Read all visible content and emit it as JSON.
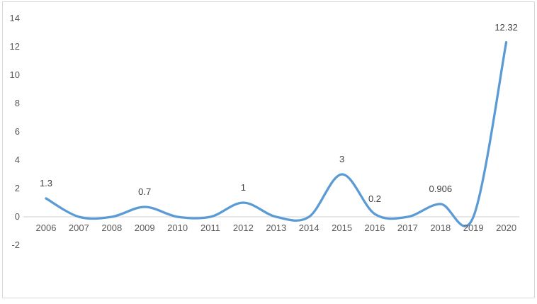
{
  "chart_data": {
    "type": "line",
    "title": "",
    "categories": [
      "2006",
      "2007",
      "2008",
      "2009",
      "2010",
      "2011",
      "2012",
      "2013",
      "2014",
      "2015",
      "2016",
      "2017",
      "2018",
      "2019",
      "2020"
    ],
    "series": [
      {
        "values": [
          1.3,
          0,
          0,
          0.7,
          0,
          0,
          1,
          0,
          0,
          3,
          0.2,
          0,
          0.906,
          0,
          12.32
        ],
        "color": "#5B9BD5",
        "smooth": true
      }
    ],
    "data_labels": [
      {
        "index": 0,
        "text": "1.3"
      },
      {
        "index": 3,
        "text": "0.7"
      },
      {
        "index": 6,
        "text": "1"
      },
      {
        "index": 9,
        "text": "3"
      },
      {
        "index": 10,
        "text": "0.2"
      },
      {
        "index": 12,
        "text": "0.906"
      },
      {
        "index": 14,
        "text": "12.32"
      }
    ],
    "y_ticks": [
      "14",
      "12",
      "10",
      "8",
      "6",
      "4",
      "2",
      "0",
      "-2"
    ],
    "ylim": [
      -2,
      14
    ],
    "xlabel": "",
    "ylabel": "",
    "grid": false,
    "legend": "none",
    "axis_line_color": "#d9d9d9",
    "tick_label_color": "#595959",
    "data_label_color": "#3f3f3f",
    "frame_border_color": "#d8d8d8"
  }
}
